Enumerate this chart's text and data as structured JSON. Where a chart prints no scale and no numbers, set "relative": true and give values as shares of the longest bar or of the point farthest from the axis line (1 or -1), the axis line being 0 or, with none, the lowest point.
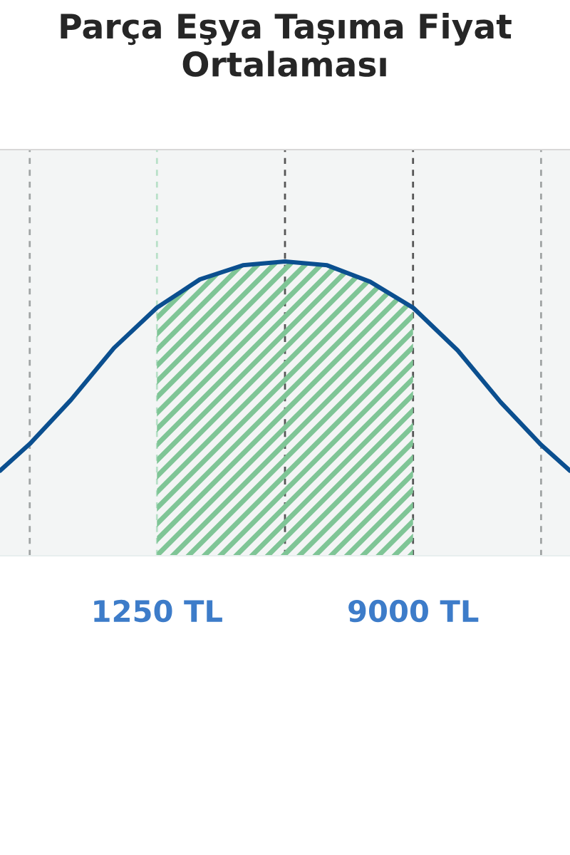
{
  "chart_data": {
    "type": "line",
    "title": "Parça Eşya Taşıma Fiyat Ortalaması",
    "relative": true,
    "x": [
      -3500,
      -2600,
      -1350,
      -50,
      1250,
      2550,
      3850,
      5125,
      6400,
      7700,
      9000,
      10350,
      11650,
      12875,
      13750
    ],
    "series": [
      {
        "color": "#0b4f8f",
        "values": [
          0.289,
          0.38,
          0.53,
          0.706,
          0.843,
          0.939,
          0.987,
          1,
          0.987,
          0.931,
          0.843,
          0.698,
          0.522,
          0.377,
          0.289
        ]
      }
    ],
    "xlim": [
      -3500,
      13750
    ],
    "xticks": [
      {
        "value": 1250,
        "label": "1250 TL"
      },
      {
        "value": 9000,
        "label": "9000 TL"
      }
    ],
    "bands": [
      {
        "axis": "x",
        "from": 1250,
        "to": 9000,
        "color": "#7fc596"
      }
    ],
    "ref_lines": [
      {
        "axis": "x",
        "value": -2600,
        "color": "#a0a4a4",
        "line_style": "dashed"
      },
      {
        "axis": "x",
        "value": 1250,
        "color": "#b8e0c8",
        "line_style": "dashed"
      },
      {
        "axis": "x",
        "value": 5125,
        "color": "#555555",
        "line_style": "dashed"
      },
      {
        "axis": "x",
        "value": 9000,
        "color": "#555555",
        "line_style": "dashed"
      },
      {
        "axis": "x",
        "value": 12875,
        "color": "#a0a4a4",
        "line_style": "dashed"
      }
    ],
    "grid": false,
    "legend": false,
    "marker": "none",
    "line_style": "solid"
  }
}
